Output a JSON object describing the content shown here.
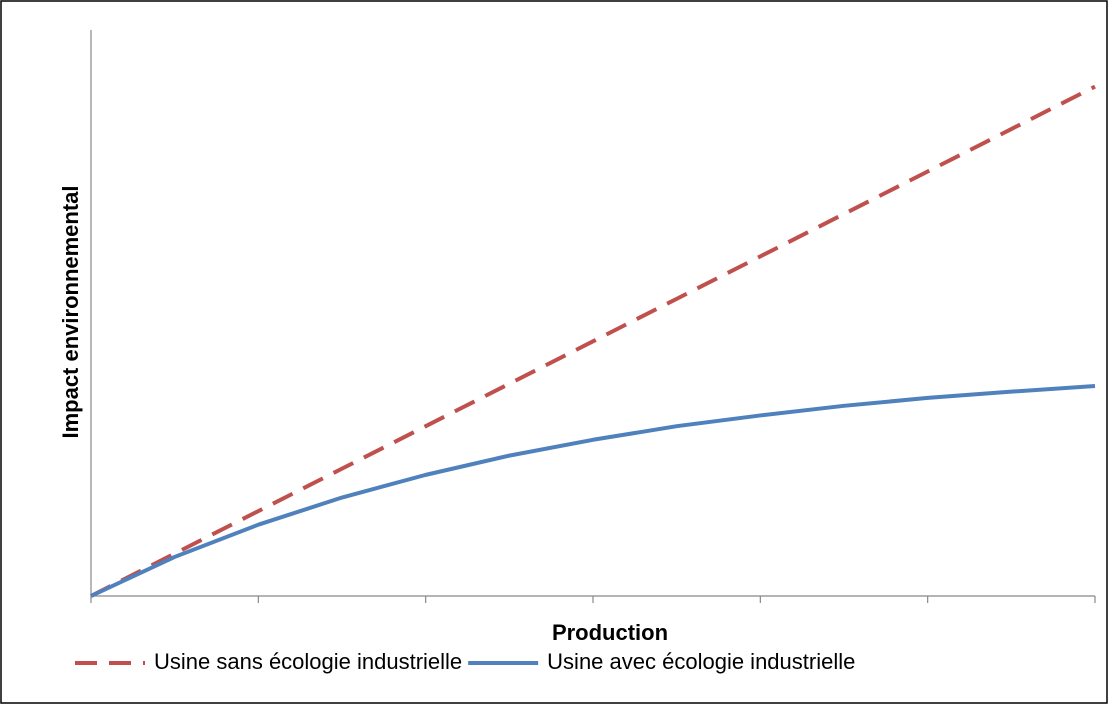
{
  "chart_data": {
    "type": "line",
    "xlabel": "Production",
    "ylabel": "Impact environnemental",
    "x": [
      0,
      0.5,
      1,
      1.5,
      2,
      2.5,
      3,
      3.5,
      4,
      4.5,
      5,
      5.5,
      6
    ],
    "series": [
      {
        "name": "Usine sans écologie industrielle",
        "color": "#c0504d",
        "dash": true,
        "values": [
          0,
          0.75,
          1.5,
          2.25,
          3,
          3.75,
          4.5,
          5.25,
          6,
          6.75,
          7.5,
          8.25,
          9
        ]
      },
      {
        "name": "Usine avec écologie industrielle",
        "color": "#4f81bd",
        "dash": false,
        "values": [
          0,
          0.69,
          1.26,
          1.74,
          2.14,
          2.48,
          2.76,
          3.0,
          3.19,
          3.36,
          3.5,
          3.61,
          3.71
        ]
      }
    ],
    "xlim": [
      0,
      6
    ],
    "xticks": [
      0,
      1,
      2,
      3,
      4,
      5,
      6
    ],
    "ylim": [
      0,
      10
    ],
    "legend": "bottom"
  }
}
